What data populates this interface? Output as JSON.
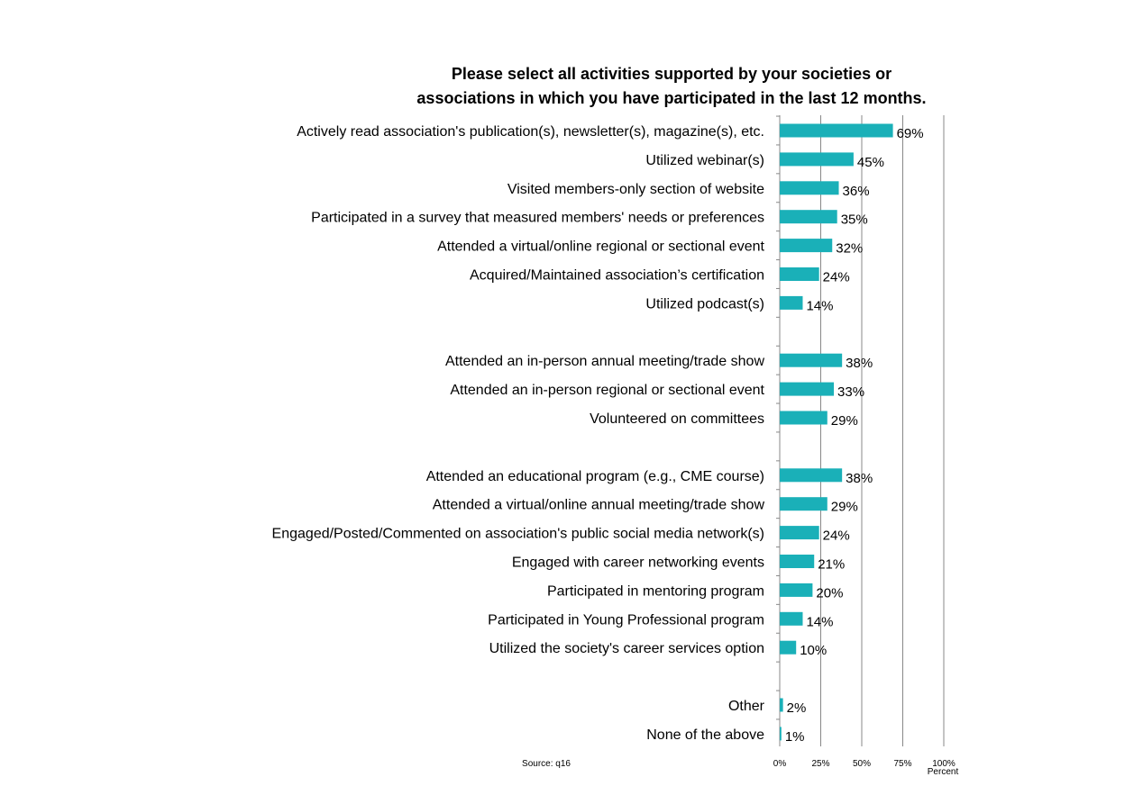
{
  "chart_data": {
    "type": "bar",
    "orientation": "horizontal",
    "title": "Please select all activities supported by your societies or associations in which you have participated in the last 12 months.",
    "title_lines": [
      "Please select all activities supported by your societies or",
      "associations in which you have participated in the last 12 months."
    ],
    "xlabel": "Percent",
    "xlim": [
      0,
      100
    ],
    "ticks": [
      "0%",
      "25%",
      "50%",
      "75%",
      "100%"
    ],
    "tick_values": [
      0,
      25,
      50,
      75,
      100
    ],
    "grid": true,
    "source": "Source: q16",
    "bar_color": "#1AB0B8",
    "groups": [
      {
        "categories": [
          "Actively read association's publication(s), newsletter(s), magazine(s), etc.",
          "Utilized webinar(s)",
          "Visited members-only section of website",
          "Participated in a survey that measured members' needs or preferences",
          "Attended a virtual/online regional or sectional event",
          "Acquired/Maintained association’s certification",
          "Utilized podcast(s)"
        ],
        "values": [
          69,
          45,
          36,
          35,
          32,
          24,
          14
        ],
        "labels": [
          "69%",
          "45%",
          "36%",
          "35%",
          "32%",
          "24%",
          "14%"
        ]
      },
      {
        "categories": [
          "Attended an in-person annual meeting/trade show",
          "Attended an in-person regional or sectional event",
          "Volunteered on committees"
        ],
        "values": [
          38,
          33,
          29
        ],
        "labels": [
          "38%",
          "33%",
          "29%"
        ]
      },
      {
        "categories": [
          "Attended an educational program (e.g., CME course)",
          "Attended a virtual/online annual meeting/trade show",
          "Engaged/Posted/Commented on association's public social media network(s)",
          "Engaged with career networking events",
          "Participated in mentoring program",
          "Participated in Young Professional program",
          "Utilized the society's career services option"
        ],
        "values": [
          38,
          29,
          24,
          21,
          20,
          14,
          10
        ],
        "labels": [
          "38%",
          "29%",
          "24%",
          "21%",
          "20%",
          "14%",
          "10%"
        ]
      },
      {
        "categories": [
          "Other",
          "None of the above"
        ],
        "values": [
          2,
          1
        ],
        "labels": [
          "2%",
          "1%"
        ]
      }
    ]
  }
}
